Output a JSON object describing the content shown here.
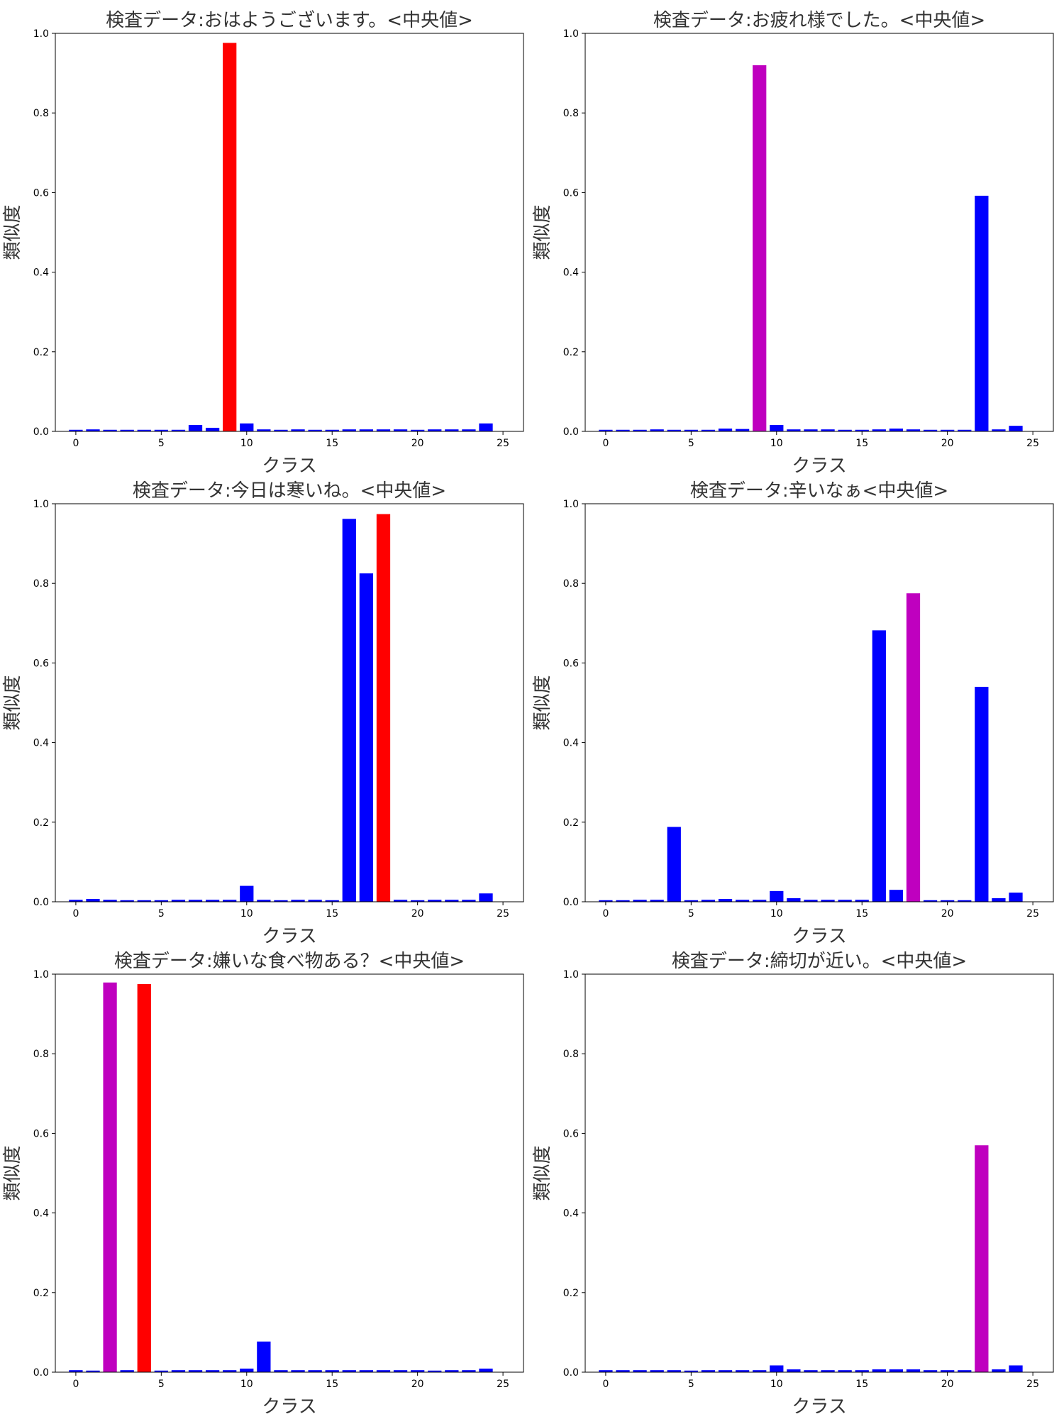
{
  "chart_data": [
    {
      "type": "bar",
      "title": "検査データ:おはようございます。<中央値>",
      "xlabel": "クラス",
      "ylabel": "類似度",
      "ylim": [
        0,
        1.0
      ],
      "xlim": [
        -1.2,
        26.2
      ],
      "x_ticks": [
        0,
        5,
        10,
        15,
        20,
        25
      ],
      "y_ticks": [
        0.0,
        0.2,
        0.4,
        0.6,
        0.8,
        1.0
      ],
      "grid": false,
      "x": [
        0,
        1,
        2,
        3,
        4,
        5,
        6,
        7,
        8,
        9,
        10,
        11,
        12,
        13,
        14,
        15,
        16,
        17,
        18,
        19,
        20,
        21,
        22,
        23,
        24
      ],
      "values": [
        0.004,
        0.005,
        0.004,
        0.004,
        0.004,
        0.004,
        0.004,
        0.016,
        0.009,
        0.976,
        0.02,
        0.005,
        0.004,
        0.005,
        0.004,
        0.004,
        0.005,
        0.005,
        0.005,
        0.005,
        0.004,
        0.005,
        0.005,
        0.005,
        0.02
      ],
      "colors": [
        "#0000ff",
        "#0000ff",
        "#0000ff",
        "#0000ff",
        "#0000ff",
        "#0000ff",
        "#0000ff",
        "#0000ff",
        "#0000ff",
        "#ff0000",
        "#0000ff",
        "#0000ff",
        "#0000ff",
        "#0000ff",
        "#0000ff",
        "#0000ff",
        "#0000ff",
        "#0000ff",
        "#0000ff",
        "#0000ff",
        "#0000ff",
        "#0000ff",
        "#0000ff",
        "#0000ff",
        "#0000ff"
      ]
    },
    {
      "type": "bar",
      "title": "検査データ:お疲れ様でした。<中央値>",
      "xlabel": "クラス",
      "ylabel": "類似度",
      "ylim": [
        0,
        1.0
      ],
      "xlim": [
        -1.2,
        26.2
      ],
      "x_ticks": [
        0,
        5,
        10,
        15,
        20,
        25
      ],
      "y_ticks": [
        0.0,
        0.2,
        0.4,
        0.6,
        0.8,
        1.0
      ],
      "grid": false,
      "x": [
        0,
        1,
        2,
        3,
        4,
        5,
        6,
        7,
        8,
        9,
        10,
        11,
        12,
        13,
        14,
        15,
        16,
        17,
        18,
        19,
        20,
        21,
        22,
        23,
        24
      ],
      "values": [
        0.004,
        0.004,
        0.004,
        0.005,
        0.004,
        0.004,
        0.004,
        0.007,
        0.006,
        0.92,
        0.016,
        0.005,
        0.005,
        0.005,
        0.004,
        0.004,
        0.005,
        0.007,
        0.005,
        0.004,
        0.004,
        0.004,
        0.592,
        0.005,
        0.014
      ],
      "colors": [
        "#0000ff",
        "#0000ff",
        "#0000ff",
        "#0000ff",
        "#0000ff",
        "#0000ff",
        "#0000ff",
        "#0000ff",
        "#0000ff",
        "#bf00bf",
        "#0000ff",
        "#0000ff",
        "#0000ff",
        "#0000ff",
        "#0000ff",
        "#0000ff",
        "#0000ff",
        "#0000ff",
        "#0000ff",
        "#0000ff",
        "#0000ff",
        "#0000ff",
        "#0000ff",
        "#0000ff",
        "#0000ff"
      ]
    },
    {
      "type": "bar",
      "title": "検査データ:今日は寒いね。<中央値>",
      "xlabel": "クラス",
      "ylabel": "類似度",
      "ylim": [
        0,
        1.0
      ],
      "xlim": [
        -1.2,
        26.2
      ],
      "x_ticks": [
        0,
        5,
        10,
        15,
        20,
        25
      ],
      "y_ticks": [
        0.0,
        0.2,
        0.4,
        0.6,
        0.8,
        1.0
      ],
      "grid": false,
      "x": [
        0,
        1,
        2,
        3,
        4,
        5,
        6,
        7,
        8,
        9,
        10,
        11,
        12,
        13,
        14,
        15,
        16,
        17,
        18,
        19,
        20,
        21,
        22,
        23,
        24
      ],
      "values": [
        0.005,
        0.007,
        0.005,
        0.004,
        0.004,
        0.004,
        0.005,
        0.005,
        0.005,
        0.005,
        0.04,
        0.005,
        0.004,
        0.005,
        0.005,
        0.004,
        0.962,
        0.825,
        0.974,
        0.005,
        0.004,
        0.005,
        0.005,
        0.005,
        0.021
      ],
      "colors": [
        "#0000ff",
        "#0000ff",
        "#0000ff",
        "#0000ff",
        "#0000ff",
        "#0000ff",
        "#0000ff",
        "#0000ff",
        "#0000ff",
        "#0000ff",
        "#0000ff",
        "#0000ff",
        "#0000ff",
        "#0000ff",
        "#0000ff",
        "#0000ff",
        "#0000ff",
        "#0000ff",
        "#ff0000",
        "#0000ff",
        "#0000ff",
        "#0000ff",
        "#0000ff",
        "#0000ff",
        "#0000ff"
      ]
    },
    {
      "type": "bar",
      "title": "検査データ:辛いなぁ<中央値>",
      "xlabel": "クラス",
      "ylabel": "類似度",
      "ylim": [
        0,
        1.0
      ],
      "xlim": [
        -1.2,
        26.2
      ],
      "x_ticks": [
        0,
        5,
        10,
        15,
        20,
        25
      ],
      "y_ticks": [
        0.0,
        0.2,
        0.4,
        0.6,
        0.8,
        1.0
      ],
      "grid": false,
      "x": [
        0,
        1,
        2,
        3,
        4,
        5,
        6,
        7,
        8,
        9,
        10,
        11,
        12,
        13,
        14,
        15,
        16,
        17,
        18,
        19,
        20,
        21,
        22,
        23,
        24
      ],
      "values": [
        0.004,
        0.004,
        0.005,
        0.005,
        0.188,
        0.004,
        0.005,
        0.007,
        0.005,
        0.005,
        0.027,
        0.009,
        0.005,
        0.005,
        0.005,
        0.005,
        0.682,
        0.03,
        0.775,
        0.004,
        0.004,
        0.004,
        0.54,
        0.009,
        0.023
      ],
      "colors": [
        "#0000ff",
        "#0000ff",
        "#0000ff",
        "#0000ff",
        "#0000ff",
        "#0000ff",
        "#0000ff",
        "#0000ff",
        "#0000ff",
        "#0000ff",
        "#0000ff",
        "#0000ff",
        "#0000ff",
        "#0000ff",
        "#0000ff",
        "#0000ff",
        "#0000ff",
        "#0000ff",
        "#bf00bf",
        "#0000ff",
        "#0000ff",
        "#0000ff",
        "#0000ff",
        "#0000ff",
        "#0000ff"
      ]
    },
    {
      "type": "bar",
      "title": "検査データ:嫌いな食べ物ある？<中央値>",
      "xlabel": "クラス",
      "ylabel": "類似度",
      "ylim": [
        0,
        1.0
      ],
      "xlim": [
        -1.2,
        26.2
      ],
      "x_ticks": [
        0,
        5,
        10,
        15,
        20,
        25
      ],
      "y_ticks": [
        0.0,
        0.2,
        0.4,
        0.6,
        0.8,
        1.0
      ],
      "grid": false,
      "x": [
        0,
        1,
        2,
        3,
        4,
        5,
        6,
        7,
        8,
        9,
        10,
        11,
        12,
        13,
        14,
        15,
        16,
        17,
        18,
        19,
        20,
        21,
        22,
        23,
        24
      ],
      "values": [
        0.005,
        0.004,
        0.979,
        0.005,
        0.975,
        0.004,
        0.005,
        0.005,
        0.005,
        0.005,
        0.009,
        0.077,
        0.005,
        0.005,
        0.005,
        0.005,
        0.005,
        0.005,
        0.005,
        0.005,
        0.005,
        0.004,
        0.005,
        0.005,
        0.009
      ],
      "colors": [
        "#0000ff",
        "#0000ff",
        "#bf00bf",
        "#0000ff",
        "#ff0000",
        "#0000ff",
        "#0000ff",
        "#0000ff",
        "#0000ff",
        "#0000ff",
        "#0000ff",
        "#0000ff",
        "#0000ff",
        "#0000ff",
        "#0000ff",
        "#0000ff",
        "#0000ff",
        "#0000ff",
        "#0000ff",
        "#0000ff",
        "#0000ff",
        "#0000ff",
        "#0000ff",
        "#0000ff",
        "#0000ff"
      ]
    },
    {
      "type": "bar",
      "title": "検査データ:締切が近い。<中央値>",
      "xlabel": "クラス",
      "ylabel": "類似度",
      "ylim": [
        0,
        1.0
      ],
      "xlim": [
        -1.2,
        26.2
      ],
      "x_ticks": [
        0,
        5,
        10,
        15,
        20,
        25
      ],
      "y_ticks": [
        0.0,
        0.2,
        0.4,
        0.6,
        0.8,
        1.0
      ],
      "grid": false,
      "x": [
        0,
        1,
        2,
        3,
        4,
        5,
        6,
        7,
        8,
        9,
        10,
        11,
        12,
        13,
        14,
        15,
        16,
        17,
        18,
        19,
        20,
        21,
        22,
        23,
        24
      ],
      "values": [
        0.005,
        0.005,
        0.005,
        0.005,
        0.005,
        0.004,
        0.005,
        0.005,
        0.005,
        0.005,
        0.017,
        0.007,
        0.005,
        0.005,
        0.005,
        0.005,
        0.007,
        0.007,
        0.007,
        0.005,
        0.005,
        0.005,
        0.57,
        0.007,
        0.017
      ],
      "colors": [
        "#0000ff",
        "#0000ff",
        "#0000ff",
        "#0000ff",
        "#0000ff",
        "#0000ff",
        "#0000ff",
        "#0000ff",
        "#0000ff",
        "#0000ff",
        "#0000ff",
        "#0000ff",
        "#0000ff",
        "#0000ff",
        "#0000ff",
        "#0000ff",
        "#0000ff",
        "#0000ff",
        "#0000ff",
        "#0000ff",
        "#0000ff",
        "#0000ff",
        "#bf00bf",
        "#0000ff",
        "#0000ff"
      ]
    }
  ]
}
